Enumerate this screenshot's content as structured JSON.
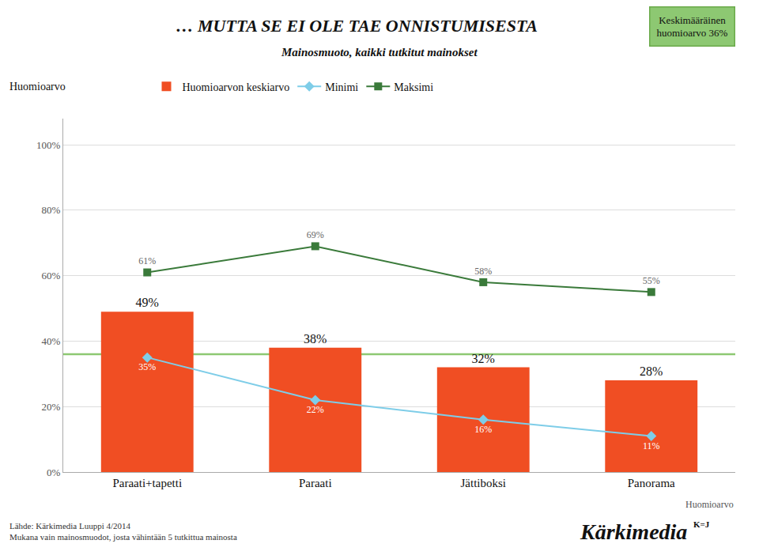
{
  "chart_data": {
    "type": "bar",
    "title": "… MUTTA SE EI OLE TAE ONNISTUMISESTA",
    "subtitle": "Mainosmuoto, kaikki tutkitut mainokset",
    "ylabel": "Huomioarvo",
    "xlabel": "Huomioarvo",
    "categories": [
      "Paraati+tapetti",
      "Paraati",
      "Jättiboksi",
      "Panorama"
    ],
    "series": [
      {
        "name": "Huomioarvon keskiarvo",
        "type": "bar",
        "color": "#F04E23",
        "values": [
          49,
          38,
          32,
          28
        ],
        "value_labels": [
          "49%",
          "38%",
          "32%",
          "28%"
        ]
      },
      {
        "name": "Minimi",
        "type": "line",
        "color": "#7ECDE8",
        "marker": "diamond",
        "values": [
          35,
          22,
          16,
          11
        ],
        "value_labels": [
          "35%",
          "22%",
          "16%",
          "11%"
        ]
      },
      {
        "name": "Maksimi",
        "type": "line",
        "color": "#3A7A3A",
        "marker": "square",
        "values": [
          61,
          69,
          58,
          55
        ],
        "value_labels": [
          "61%",
          "69%",
          "58%",
          "55%"
        ]
      }
    ],
    "reference_line": {
      "value": 36,
      "label": "Keskimääräinen\nhuomioarvo 36%",
      "color": "#8DC872"
    },
    "ylim": [
      0,
      108
    ],
    "yticks": [
      {
        "value": 0,
        "label": "0%"
      },
      {
        "value": 20,
        "label": "20%"
      },
      {
        "value": 40,
        "label": "40%"
      },
      {
        "value": 60,
        "label": "60%"
      },
      {
        "value": 80,
        "label": "80%"
      },
      {
        "value": 100,
        "label": "100%"
      }
    ],
    "grid": true,
    "legend": "top",
    "data_labels": true,
    "source": "Lähde: Kärkimedia Luuppi 4/2014\nMukana vain mainosmuodot, josta vähintään 5 tutkittua mainosta",
    "annotations": [
      "Kärkimedia",
      "K=J"
    ]
  }
}
